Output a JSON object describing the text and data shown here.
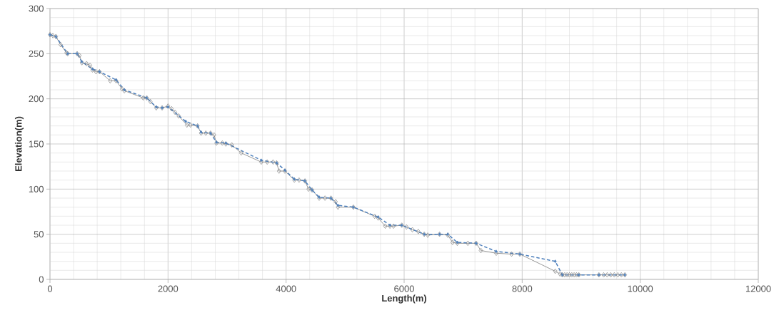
{
  "chart_data": {
    "type": "line",
    "xlabel": "Length(m)",
    "ylabel": "Elevation(m)",
    "xlim": [
      0,
      12000
    ],
    "xticks": [
      0,
      2000,
      4000,
      6000,
      8000,
      10000,
      12000
    ],
    "ylim": [
      0,
      300
    ],
    "yticks": [
      0,
      50,
      100,
      150,
      200,
      250,
      300
    ],
    "grid": true,
    "marker": "diamond",
    "series": [
      {
        "color": "#7f7f7f",
        "line_style": "solid",
        "x": [
          0,
          50,
          100,
          180,
          280,
          300,
          460,
          500,
          540,
          620,
          680,
          720,
          780,
          840,
          1020,
          1120,
          1220,
          1260,
          1580,
          1640,
          1700,
          1800,
          1900,
          2000,
          2060,
          2120,
          2180,
          2320,
          2380,
          2500,
          2560,
          2640,
          2720,
          2780,
          2820,
          2920,
          2980,
          3080,
          3240,
          3580,
          3680,
          3780,
          3840,
          3880,
          3980,
          4140,
          4220,
          4320,
          4380,
          4440,
          4560,
          4660,
          4760,
          4840,
          4880,
          5140,
          5500,
          5560,
          5680,
          5760,
          5820,
          5960,
          6040,
          6140,
          6240,
          6340,
          6400,
          6600,
          6740,
          6820,
          6900,
          7080,
          7220,
          7300,
          7560,
          7820,
          7960,
          8560,
          8640,
          8680,
          8720,
          8760,
          8800,
          8840,
          8880,
          8920,
          8960,
          9300,
          9380,
          9440,
          9500,
          9560,
          9620,
          9680,
          9740
        ],
        "values": [
          271,
          270,
          269,
          260,
          251,
          250,
          250,
          248,
          240,
          239,
          237,
          232,
          230,
          230,
          220,
          220,
          211,
          209,
          201,
          201,
          197,
          190,
          190,
          192,
          189,
          185,
          181,
          171,
          171,
          170,
          162,
          162,
          162,
          160,
          151,
          151,
          150,
          149,
          140,
          130,
          130,
          130,
          129,
          120,
          120,
          110,
          110,
          109,
          100,
          99,
          90,
          90,
          90,
          86,
          80,
          80,
          70,
          68,
          59,
          59,
          59,
          60,
          58,
          55,
          53,
          50,
          49,
          50,
          49,
          41,
          40,
          40,
          40,
          32,
          29,
          28,
          28,
          9,
          6,
          5,
          5,
          5,
          5,
          5,
          5,
          5,
          5,
          5,
          5,
          5,
          5,
          5,
          5,
          5,
          5
        ]
      },
      {
        "color": "#4f81bd",
        "line_style": "dashed",
        "x": [
          0,
          100,
          300,
          460,
          540,
          720,
          840,
          1120,
          1260,
          1640,
          1800,
          1900,
          2000,
          2300,
          2500,
          2560,
          2720,
          2820,
          2980,
          3580,
          3840,
          3980,
          4140,
          4320,
          4440,
          4560,
          4760,
          4880,
          5140,
          5560,
          5760,
          5960,
          6340,
          6600,
          6740,
          6900,
          7220,
          7560,
          7960,
          8560,
          8680,
          8960,
          9300,
          9740
        ],
        "values": [
          271,
          269,
          250,
          250,
          241,
          233,
          230,
          221,
          210,
          201,
          191,
          190,
          191,
          175,
          170,
          163,
          162,
          152,
          151,
          132,
          129,
          121,
          111,
          109,
          99,
          91,
          90,
          82,
          80,
          69,
          60,
          60,
          50,
          50,
          50,
          41,
          40,
          31,
          28,
          20,
          5,
          5,
          5,
          5
        ]
      }
    ]
  }
}
